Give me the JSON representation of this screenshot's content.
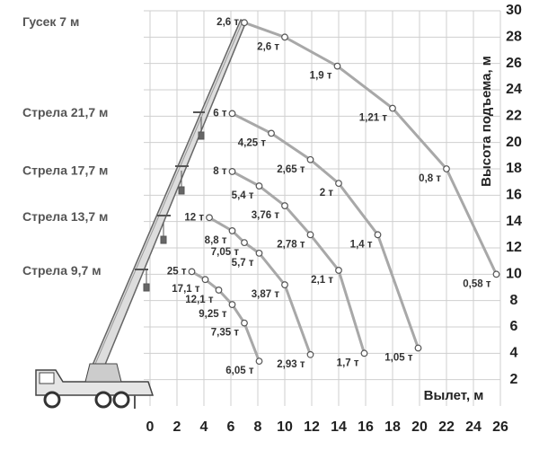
{
  "chart_data": {
    "type": "line",
    "x_label": "Вылет, м",
    "y_label": "Высота подъема, м",
    "xlim": [
      0,
      26
    ],
    "ylim": [
      0,
      30
    ],
    "xticks": [
      0,
      2,
      4,
      6,
      8,
      10,
      12,
      14,
      16,
      18,
      20,
      22,
      24,
      26
    ],
    "yticks": [
      2,
      4,
      6,
      8,
      10,
      12,
      14,
      16,
      18,
      20,
      22,
      24,
      26,
      28,
      30
    ],
    "grid": true,
    "color": "#a8a8a8",
    "series": [
      {
        "name": "Гусек  7 м",
        "x": [
          7,
          10,
          13.9,
          18,
          22,
          25.7
        ],
        "values": [
          29.1,
          28,
          25.8,
          22.6,
          18,
          10
        ],
        "loads": [
          2.6,
          2.6,
          1.9,
          1.21,
          0.8,
          0.58
        ],
        "value_labels": [
          "2,6 т",
          "2,6 т",
          "1,9 т",
          "1,21 т",
          "0,8 т",
          "0,58 т"
        ]
      },
      {
        "name": "Стрела 21,7 м",
        "x": [
          6.1,
          9,
          11.9,
          14,
          16.9,
          19.9
        ],
        "values": [
          22.2,
          20.7,
          18.7,
          16.9,
          13,
          4.4
        ],
        "loads": [
          6,
          4.25,
          2.65,
          2,
          1.4,
          1.05
        ],
        "value_labels": [
          "6 т",
          "4,25 т",
          "2,65 т",
          "2 т",
          "1,4 т",
          "1,05 т"
        ]
      },
      {
        "name": "Стрела 17,7 м",
        "x": [
          6.1,
          8.1,
          10,
          11.9,
          14,
          15.9
        ],
        "values": [
          17.8,
          16.7,
          15.2,
          13,
          10.3,
          4
        ],
        "loads": [
          8,
          5.4,
          3.76,
          2.78,
          2.1,
          1.7
        ],
        "value_labels": [
          "8 т",
          "5,4 т",
          "3,76 т",
          "2,78 т",
          "2,1 т",
          "1,7 т"
        ]
      },
      {
        "name": "Стрела 13,7 м",
        "x": [
          4.4,
          6.1,
          7,
          8.1,
          10,
          11.9
        ],
        "values": [
          14.3,
          13.3,
          12.4,
          11.6,
          9.2,
          3.9
        ],
        "loads": [
          12,
          8.8,
          7.05,
          5.7,
          3.87,
          2.93
        ],
        "value_labels": [
          "12 т",
          "8,8 т",
          "7,05 т",
          "5,7 т",
          "3,87 т",
          "2,93 т"
        ]
      },
      {
        "name": "Стрела 9,7 м",
        "x": [
          3.1,
          4.1,
          5.1,
          6.1,
          7,
          8.1
        ],
        "values": [
          10.2,
          9.6,
          8.8,
          7.7,
          6.3,
          3.4
        ],
        "loads": [
          25,
          17.1,
          12.1,
          9.25,
          7.35,
          6.05
        ],
        "value_labels": [
          "25 т",
          "17,1 т",
          "12,1 т",
          "9,25 т",
          "7,35 т",
          "6,05 т"
        ]
      }
    ]
  }
}
